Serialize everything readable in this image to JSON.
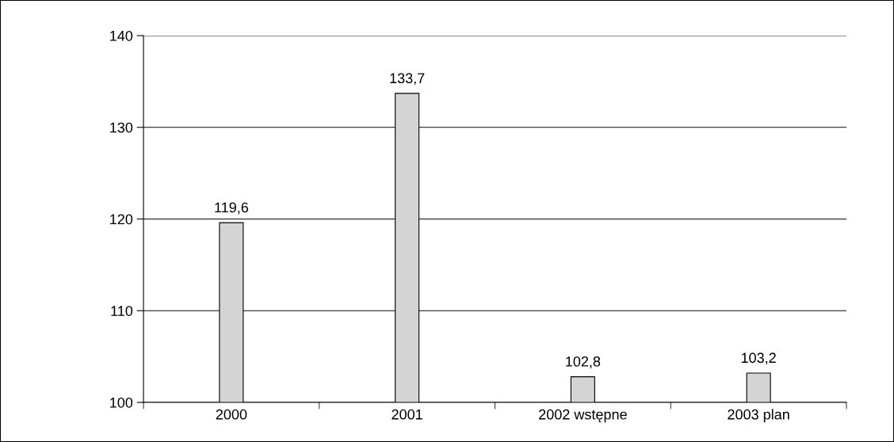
{
  "chart_data": {
    "type": "bar",
    "categories": [
      "2000",
      "2001",
      "2002 wstępne",
      "2003 plan"
    ],
    "values": [
      119.6,
      133.7,
      102.8,
      103.2
    ],
    "value_labels": [
      "119,6",
      "133,7",
      "102,8",
      "103,2"
    ],
    "color": "#d4d4d4",
    "ylim": [
      100,
      140
    ],
    "yticks": [
      100,
      110,
      120,
      130,
      140
    ],
    "grid": "y"
  }
}
